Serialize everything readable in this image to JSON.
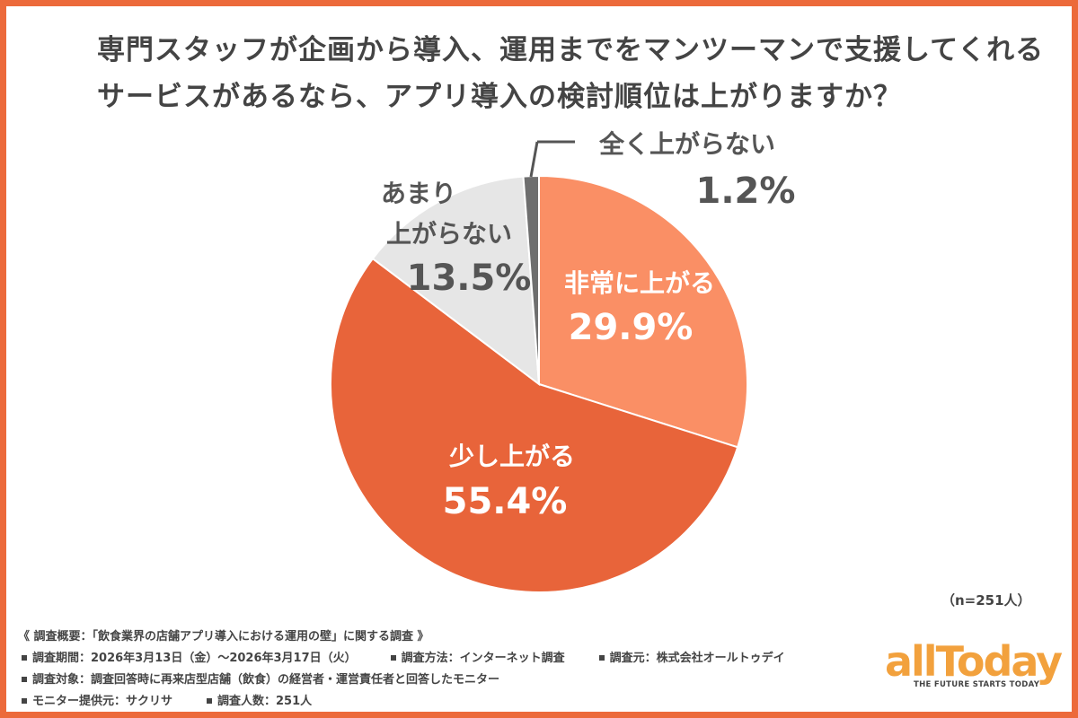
{
  "title": {
    "line1": "専門スタッフが企画から導入、運用までをマンツーマンで支援してくれる",
    "line2": "サービスがあるなら、アプリ導入の検討順位は上がりますか？"
  },
  "chart_data": {
    "type": "pie",
    "title": "専門スタッフが企画から導入、運用までをマンツーマンで支援してくれるサービスがあるなら、アプリ導入の検討順位は上がりますか？",
    "slices": [
      {
        "label": "非常に上がる",
        "value": 29.9,
        "display": "29.9%",
        "color": "#fa8f65"
      },
      {
        "label": "少し上がる",
        "value": 55.4,
        "display": "55.4%",
        "color": "#e8643a"
      },
      {
        "label": "あまり上がらない",
        "value": 13.5,
        "display": "13.5%",
        "color": "#e6e6e6"
      },
      {
        "label": "全く上がらない",
        "value": 1.2,
        "display": "1.2%",
        "color": "#6e6e6e"
      }
    ],
    "start_angle_deg": 0,
    "direction": "clockwise",
    "sample_size": "（n=251人）"
  },
  "labels": {
    "very_up": "非常に上がる",
    "very_up_pct": "29.9%",
    "slightly_up": "少し上がる",
    "slightly_up_pct": "55.4%",
    "not_much_1": "あまり",
    "not_much_2": "上がらない",
    "not_much_pct": "13.5%",
    "not_at_all": "全く上がらない",
    "not_at_all_pct": "1.2%"
  },
  "survey": {
    "heading": "《 調査概要：「飲食業界の店舗アプリ導入における運用の壁」に関する調査 》",
    "period": "調査期間：2026年3月13日（金）〜2026年3月17日（火）",
    "method": "調査方法：インターネット調査",
    "organizer": "調査元：株式会社オールトゥデイ",
    "target": "調査対象：調査回答時に再来店型店舗（飲食）の経営者・運営責任者と回答したモニター",
    "panel": "モニター提供元：サクリサ",
    "count": "調査人数：251人"
  },
  "logo": {
    "wordmark": "allToday",
    "tagline": "THE FUTURE STARTS TODAY",
    "color": "#f2a13d"
  },
  "colors": {
    "border": "#ec6a3b",
    "text": "#444444"
  }
}
